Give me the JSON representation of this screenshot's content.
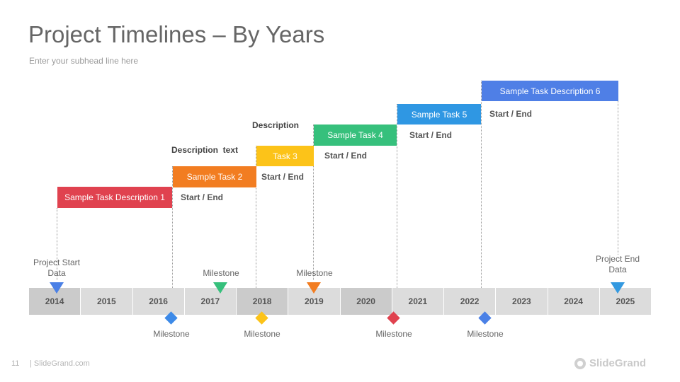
{
  "slide": {
    "title": "Project Timelines – By Years",
    "subhead": "Enter your subhead line here"
  },
  "tasks": [
    {
      "label": "Sample Task Description 1",
      "color": "#e0424f"
    },
    {
      "label": "Sample Task 2",
      "color": "#f27d21"
    },
    {
      "label": "Task 3",
      "color": "#fcc319"
    },
    {
      "label": "Sample Task 4",
      "color": "#36c07c"
    },
    {
      "label": "Sample Task 5",
      "color": "#2f97e3"
    },
    {
      "label": "Sample Task Description 6",
      "color": "#4f7fe6"
    }
  ],
  "start_end_label": "Start / End",
  "descriptions": [
    "Description  text",
    "Description"
  ],
  "years": [
    "2014",
    "2015",
    "2016",
    "2017",
    "2018",
    "2019",
    "2020",
    "2021",
    "2022",
    "2023",
    "2024",
    "2025"
  ],
  "markers": {
    "project_start": {
      "label": "Project Start Data",
      "color": "#4a80e6"
    },
    "project_end": {
      "label": "Project End Data",
      "color": "#3399e0"
    },
    "milestone_label": "Milestone",
    "milestones_above": [
      {
        "color": "#36c07c"
      },
      {
        "color": "#f27d21"
      }
    ],
    "milestones_below": [
      {
        "color": "#3d8ae8"
      },
      {
        "color": "#fcc319"
      },
      {
        "color": "#e0424f"
      },
      {
        "color": "#4a80e6"
      }
    ]
  },
  "footer": {
    "page_number": "11",
    "site": "| SlideGrand.com",
    "brand": "SlideGrand"
  }
}
